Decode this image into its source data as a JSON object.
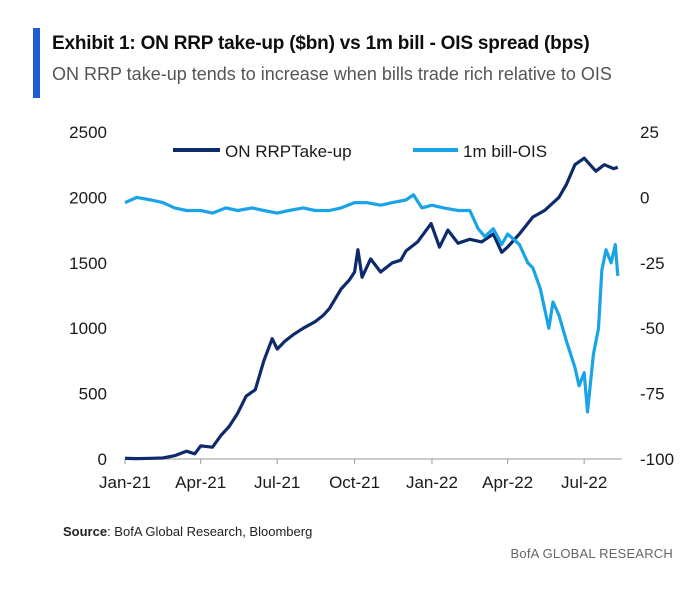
{
  "header": {
    "title": "Exhibit 1: ON RRP take-up ($bn) vs 1m bill - OIS spread (bps)",
    "subtitle": "ON RRP take-up tends to increase when bills trade rich relative to OIS"
  },
  "footer": {
    "source_label": "Source",
    "source_text": ": BofA Global Research, Bloomberg",
    "brand": "BofA GLOBAL RESEARCH"
  },
  "colors": {
    "accent": "#1f5bd6",
    "rrp": "#0d2a6b",
    "spread": "#1aa3e6"
  },
  "chart_data": {
    "type": "line",
    "title": "",
    "xlabel": "",
    "x_ticks": [
      "Jan-21",
      "Apr-21",
      "Jul-21",
      "Oct-21",
      "Jan-22",
      "Apr-22",
      "Jul-22"
    ],
    "x_range": [
      "Jan-21",
      "Aug-22"
    ],
    "y_left": {
      "ylim": [
        0,
        2500
      ],
      "ticks": [
        "0",
        "500",
        "1000",
        "1500",
        "2000",
        "2500"
      ]
    },
    "y_right": {
      "ylim": [
        -100,
        25
      ],
      "ticks": [
        "-100",
        "-75",
        "-50",
        "-25",
        "0",
        "25"
      ]
    },
    "legend": {
      "placement": "top",
      "entries": [
        "ON RRPTake-up",
        "1m bill-OIS"
      ]
    },
    "grid": false,
    "series": [
      {
        "name": "ON RRPTake-up",
        "axis": "left",
        "points": [
          [
            "2021-01-01",
            5
          ],
          [
            "2021-01-15",
            3
          ],
          [
            "2021-02-01",
            5
          ],
          [
            "2021-02-15",
            8
          ],
          [
            "2021-03-01",
            25
          ],
          [
            "2021-03-15",
            60
          ],
          [
            "2021-03-25",
            40
          ],
          [
            "2021-04-01",
            100
          ],
          [
            "2021-04-15",
            90
          ],
          [
            "2021-04-25",
            180
          ],
          [
            "2021-05-05",
            250
          ],
          [
            "2021-05-15",
            350
          ],
          [
            "2021-05-25",
            480
          ],
          [
            "2021-06-05",
            530
          ],
          [
            "2021-06-15",
            750
          ],
          [
            "2021-06-25",
            920
          ],
          [
            "2021-07-01",
            840
          ],
          [
            "2021-07-10",
            900
          ],
          [
            "2021-07-20",
            950
          ],
          [
            "2021-08-01",
            1000
          ],
          [
            "2021-08-15",
            1050
          ],
          [
            "2021-08-25",
            1100
          ],
          [
            "2021-09-01",
            1150
          ],
          [
            "2021-09-15",
            1300
          ],
          [
            "2021-09-25",
            1370
          ],
          [
            "2021-10-01",
            1430
          ],
          [
            "2021-10-05",
            1600
          ],
          [
            "2021-10-10",
            1390
          ],
          [
            "2021-10-20",
            1530
          ],
          [
            "2021-11-01",
            1430
          ],
          [
            "2021-11-15",
            1500
          ],
          [
            "2021-11-25",
            1520
          ],
          [
            "2021-12-01",
            1590
          ],
          [
            "2021-12-15",
            1660
          ],
          [
            "2021-12-31",
            1800
          ],
          [
            "2022-01-10",
            1620
          ],
          [
            "2022-01-20",
            1750
          ],
          [
            "2022-02-01",
            1650
          ],
          [
            "2022-02-15",
            1680
          ],
          [
            "2022-03-01",
            1660
          ],
          [
            "2022-03-15",
            1720
          ],
          [
            "2022-03-25",
            1580
          ],
          [
            "2022-04-01",
            1620
          ],
          [
            "2022-04-15",
            1720
          ],
          [
            "2022-05-01",
            1850
          ],
          [
            "2022-05-15",
            1900
          ],
          [
            "2022-06-01",
            2000
          ],
          [
            "2022-06-10",
            2100
          ],
          [
            "2022-06-20",
            2250
          ],
          [
            "2022-07-01",
            2300
          ],
          [
            "2022-07-15",
            2200
          ],
          [
            "2022-07-25",
            2250
          ],
          [
            "2022-08-05",
            2220
          ],
          [
            "2022-08-10",
            2230
          ]
        ]
      },
      {
        "name": "1m bill-OIS",
        "axis": "right",
        "points": [
          [
            "2021-01-01",
            -2
          ],
          [
            "2021-01-15",
            0
          ],
          [
            "2021-02-01",
            -1
          ],
          [
            "2021-02-15",
            -2
          ],
          [
            "2021-03-01",
            -4
          ],
          [
            "2021-03-15",
            -5
          ],
          [
            "2021-04-01",
            -5
          ],
          [
            "2021-04-15",
            -6
          ],
          [
            "2021-05-01",
            -4
          ],
          [
            "2021-05-15",
            -5
          ],
          [
            "2021-06-01",
            -4
          ],
          [
            "2021-06-15",
            -5
          ],
          [
            "2021-07-01",
            -6
          ],
          [
            "2021-07-15",
            -5
          ],
          [
            "2021-08-01",
            -4
          ],
          [
            "2021-08-15",
            -5
          ],
          [
            "2021-09-01",
            -5
          ],
          [
            "2021-09-15",
            -4
          ],
          [
            "2021-10-01",
            -2
          ],
          [
            "2021-10-15",
            -2
          ],
          [
            "2021-11-01",
            -3
          ],
          [
            "2021-11-15",
            -2
          ],
          [
            "2021-12-01",
            -1
          ],
          [
            "2021-12-10",
            1
          ],
          [
            "2021-12-20",
            -4
          ],
          [
            "2022-01-01",
            -3
          ],
          [
            "2022-01-15",
            -4
          ],
          [
            "2022-02-01",
            -5
          ],
          [
            "2022-02-15",
            -5
          ],
          [
            "2022-02-25",
            -12
          ],
          [
            "2022-03-05",
            -15
          ],
          [
            "2022-03-15",
            -12
          ],
          [
            "2022-03-25",
            -18
          ],
          [
            "2022-04-01",
            -14
          ],
          [
            "2022-04-15",
            -18
          ],
          [
            "2022-04-25",
            -25
          ],
          [
            "2022-05-01",
            -27
          ],
          [
            "2022-05-10",
            -35
          ],
          [
            "2022-05-20",
            -50
          ],
          [
            "2022-05-25",
            -40
          ],
          [
            "2022-06-01",
            -45
          ],
          [
            "2022-06-10",
            -55
          ],
          [
            "2022-06-20",
            -65
          ],
          [
            "2022-06-25",
            -72
          ],
          [
            "2022-07-01",
            -67
          ],
          [
            "2022-07-05",
            -82
          ],
          [
            "2022-07-12",
            -60
          ],
          [
            "2022-07-18",
            -50
          ],
          [
            "2022-07-22",
            -28
          ],
          [
            "2022-07-27",
            -20
          ],
          [
            "2022-08-02",
            -25
          ],
          [
            "2022-08-07",
            -18
          ],
          [
            "2022-08-10",
            -30
          ]
        ]
      }
    ]
  }
}
